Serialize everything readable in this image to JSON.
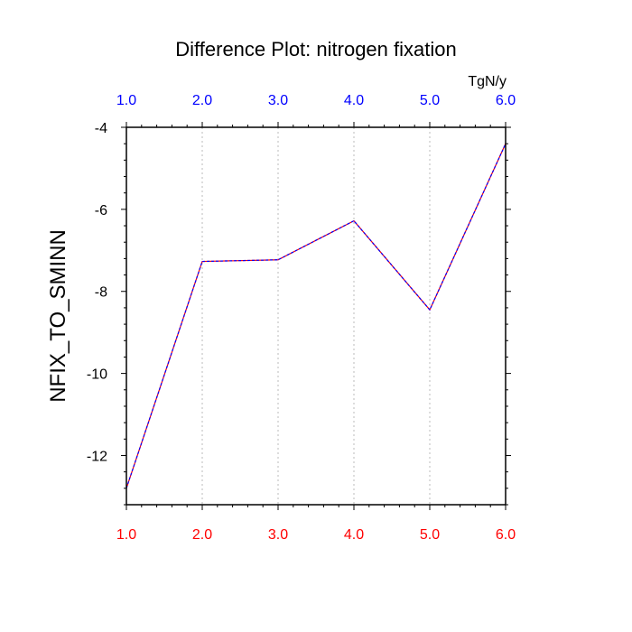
{
  "chart_data": {
    "type": "line",
    "title": "Difference Plot: nitrogen fixation",
    "units": "TgN/y",
    "ylabel": "NFIX_TO_SMINN",
    "xlim": [
      1.0,
      6.0
    ],
    "ylim": [
      -13.2,
      -4.0
    ],
    "x_ticks": [
      "1.0",
      "2.0",
      "3.0",
      "4.0",
      "5.0",
      "6.0"
    ],
    "x_tick_values": [
      1,
      2,
      3,
      4,
      5,
      6
    ],
    "y_ticks": [
      "-4",
      "-6",
      "-8",
      "-10",
      "-12"
    ],
    "y_tick_values": [
      -4,
      -6,
      -8,
      -10,
      -12
    ],
    "grid": "vertical dotted",
    "colors": {
      "bottom_tick_labels": "#ff0000",
      "top_tick_labels": "#0000ff",
      "series_line_1": "#ff0000",
      "series_line_2": "#0000ff"
    },
    "series": [
      {
        "x": [
          1,
          2,
          3,
          4,
          5,
          6
        ],
        "values": [
          -12.8,
          -7.27,
          -7.23,
          -6.28,
          -8.45,
          -4.4
        ]
      }
    ]
  }
}
